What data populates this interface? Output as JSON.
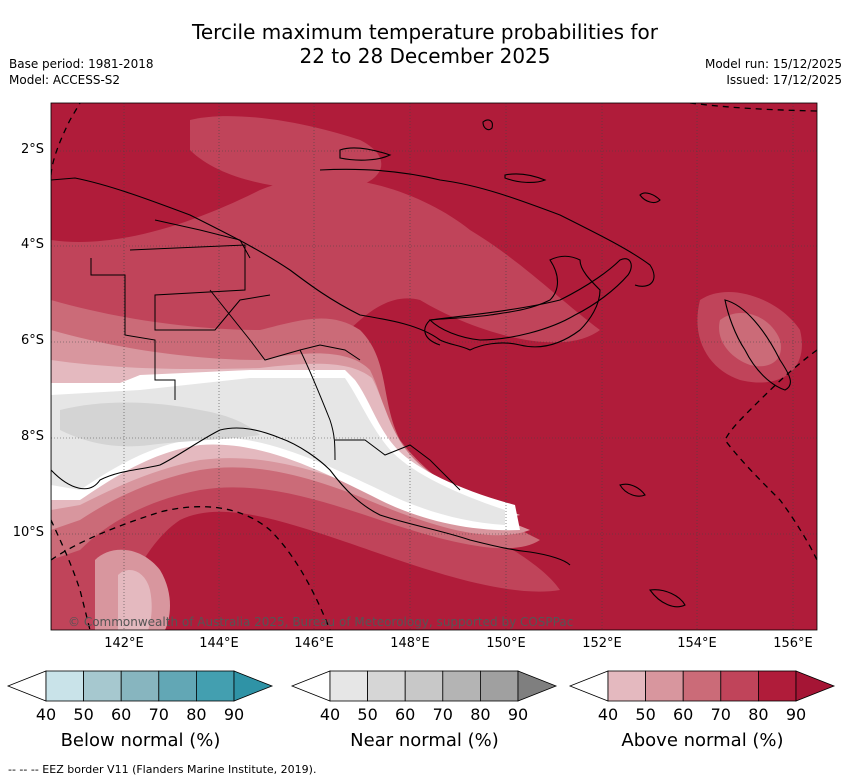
{
  "title": {
    "line1": "Tercile maximum temperature probabilities for",
    "line2": "22 to 28 December 2025"
  },
  "meta": {
    "base_period": "Base period: 1981-2018",
    "model": "Model: ACCESS-S2",
    "model_run": "Model run: 15/12/2025",
    "issued": "Issued: 17/12/2025"
  },
  "map": {
    "lat_ticks": [
      "2°S",
      "4°S",
      "6°S",
      "8°S",
      "10°S"
    ],
    "lon_ticks": [
      "142°E",
      "144°E",
      "146°E",
      "148°E",
      "150°E",
      "152°E",
      "154°E",
      "156°E"
    ],
    "copyright": "© Commonwealth of Australia 2025, Bureau of Meteorology, supported by COSPPac",
    "colors": {
      "above_90": "#b01c3a",
      "above_80": "#c0445a",
      "above_70": "#cb6b78",
      "above_60": "#d8969e",
      "above_50": "#e4b9bf",
      "near_40": "#e6e6e6",
      "near_50": "#d4d4d4",
      "white": "#ffffff"
    }
  },
  "colorbars": [
    {
      "name": "below",
      "label": "Below normal (%)",
      "ticks": [
        "40",
        "50",
        "60",
        "70",
        "80",
        "90"
      ],
      "colors": [
        "#ffffff",
        "#c9e3e9",
        "#a6c8cf",
        "#87b5bf",
        "#62a7b5",
        "#439fb0",
        "#2f93a6"
      ]
    },
    {
      "name": "near",
      "label": "Near normal (%)",
      "ticks": [
        "40",
        "50",
        "60",
        "70",
        "80",
        "90"
      ],
      "colors": [
        "#ffffff",
        "#e6e6e6",
        "#d6d6d6",
        "#c8c8c8",
        "#b4b4b4",
        "#a0a0a0",
        "#7f7f7f"
      ]
    },
    {
      "name": "above",
      "label": "Above normal (%)",
      "ticks": [
        "40",
        "50",
        "60",
        "70",
        "80",
        "90"
      ],
      "colors": [
        "#ffffff",
        "#e4b9bf",
        "#d8969e",
        "#cb6b78",
        "#c0445a",
        "#b01c3a",
        "#a51535"
      ]
    }
  ],
  "footer": "--  --  -- EEZ border V11 (Flanders Marine Institute, 2019)."
}
